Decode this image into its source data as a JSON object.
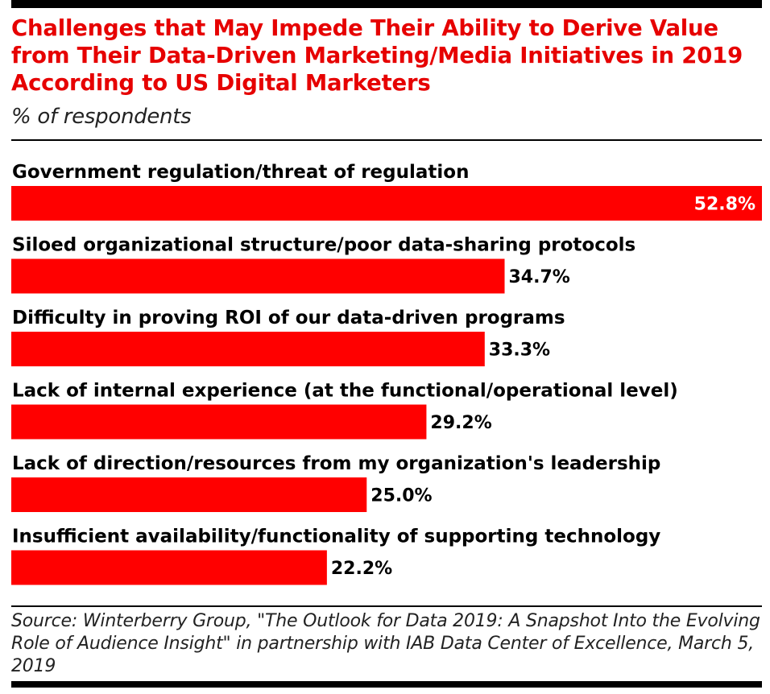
{
  "header": {
    "title": "Challenges that May Impede Their Ability to Derive Value from Their Data-Driven Marketing/Media Initiatives in 2019 According to US Digital Marketers",
    "subtitle": "% of respondents"
  },
  "footer": {
    "source": "Source: Winterberry Group, \"The Outlook for Data 2019: A Snapshot Into the Evolving Role of Audience Insight\" in partnership with IAB Data Center of Excellence, March 5, 2019"
  },
  "colors": {
    "bar": "#ff0000",
    "title": "#e60000",
    "rule": "#000000"
  },
  "chart_data": {
    "type": "bar",
    "orientation": "horizontal",
    "title": "Challenges that May Impede Their Ability to Derive Value from Their Data-Driven Marketing/Media Initiatives in 2019 According to US Digital Marketers",
    "subtitle": "% of respondents",
    "categories": [
      "Government regulation/threat of regulation",
      "Siloed organizational structure/poor data-sharing protocols",
      "Difficulty in proving ROI of our data-driven programs",
      "Lack of internal experience (at the functional/operational level)",
      "Lack of direction/resources from my organization's leadership",
      "Insufficient availability/functionality of supporting technology"
    ],
    "values": [
      52.8,
      34.7,
      33.3,
      29.2,
      25.0,
      22.2
    ],
    "value_labels": [
      "52.8%",
      "34.7%",
      "33.3%",
      "29.2%",
      "25.0%",
      "22.2%"
    ],
    "xlim": [
      0,
      52.8
    ],
    "grid": false,
    "legend": "none"
  }
}
